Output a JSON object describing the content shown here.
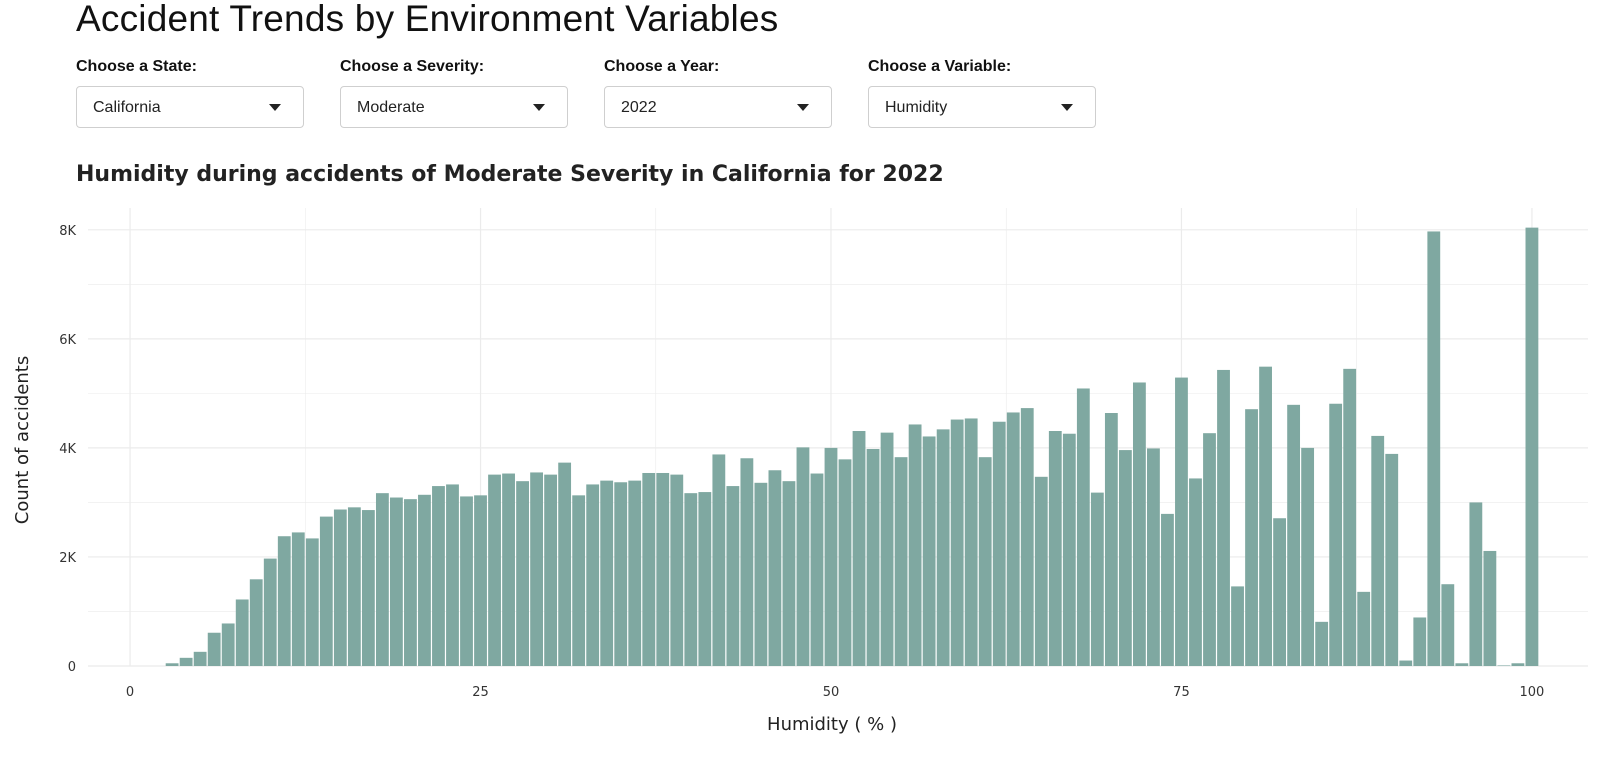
{
  "page_title": "Accident Trends by Environment Variables",
  "controls": [
    {
      "label": "Choose a State:",
      "value": "California"
    },
    {
      "label": "Choose a Severity:",
      "value": "Moderate"
    },
    {
      "label": "Choose a Year:",
      "value": "2022"
    },
    {
      "label": "Choose a Variable:",
      "value": "Humidity"
    }
  ],
  "caret_icon": "chevron-down-icon",
  "chart_title": "Humidity during accidents of Moderate Severity in California for 2022",
  "bar_color": "#7fa8a1",
  "grid_color": "#ebebeb",
  "chart_data": {
    "type": "bar",
    "xlabel": "Humidity ( % )",
    "ylabel": "Count of accidents",
    "xlim": [
      -3,
      104
    ],
    "ylim": [
      0,
      8400
    ],
    "xticks": [
      {
        "value": 0,
        "label": "0"
      },
      {
        "value": 25,
        "label": "25"
      },
      {
        "value": 50,
        "label": "50"
      },
      {
        "value": 75,
        "label": "75"
      },
      {
        "value": 100,
        "label": "100"
      }
    ],
    "yticks": [
      {
        "value": 0,
        "label": "0"
      },
      {
        "value": 2000,
        "label": "2K"
      },
      {
        "value": 4000,
        "label": "4K"
      },
      {
        "value": 6000,
        "label": "6K"
      },
      {
        "value": 8000,
        "label": "8K"
      }
    ],
    "grid": true,
    "x": [
      3,
      4,
      5,
      6,
      7,
      8,
      9,
      10,
      11,
      12,
      13,
      14,
      15,
      16,
      17,
      18,
      19,
      20,
      21,
      22,
      23,
      24,
      25,
      26,
      27,
      28,
      29,
      30,
      31,
      32,
      33,
      34,
      35,
      36,
      37,
      38,
      39,
      40,
      41,
      42,
      43,
      44,
      45,
      46,
      47,
      48,
      49,
      50,
      51,
      52,
      53,
      54,
      55,
      56,
      57,
      58,
      59,
      60,
      61,
      62,
      63,
      64,
      65,
      66,
      67,
      68,
      69,
      70,
      71,
      72,
      73,
      74,
      75,
      76,
      77,
      78,
      79,
      80,
      81,
      82,
      83,
      84,
      85,
      86,
      87,
      88,
      89,
      90,
      91,
      92,
      93,
      94,
      95,
      96,
      97,
      98,
      99,
      100
    ],
    "values": [
      50,
      150,
      260,
      610,
      780,
      1220,
      1590,
      1970,
      2380,
      2450,
      2340,
      2740,
      2870,
      2910,
      2860,
      3170,
      3090,
      3060,
      3140,
      3300,
      3330,
      3110,
      3130,
      3510,
      3530,
      3390,
      3550,
      3510,
      3730,
      3130,
      3330,
      3400,
      3370,
      3400,
      3540,
      3540,
      3510,
      3170,
      3190,
      3880,
      3300,
      3810,
      3360,
      3590,
      3390,
      4010,
      3530,
      4000,
      3790,
      4310,
      3980,
      4280,
      3830,
      4430,
      4210,
      4340,
      4520,
      4540,
      3830,
      4480,
      4650,
      4730,
      3470,
      4310,
      4260,
      5090,
      3180,
      4640,
      3960,
      5200,
      3990,
      2790,
      5290,
      3440,
      4270,
      5430,
      1460,
      4710,
      5490,
      2710,
      4790,
      4000,
      810,
      4810,
      5450,
      1360,
      4220,
      3890,
      100,
      890,
      7970,
      1500,
      50,
      3000,
      2110,
      10,
      50,
      8040
    ]
  }
}
